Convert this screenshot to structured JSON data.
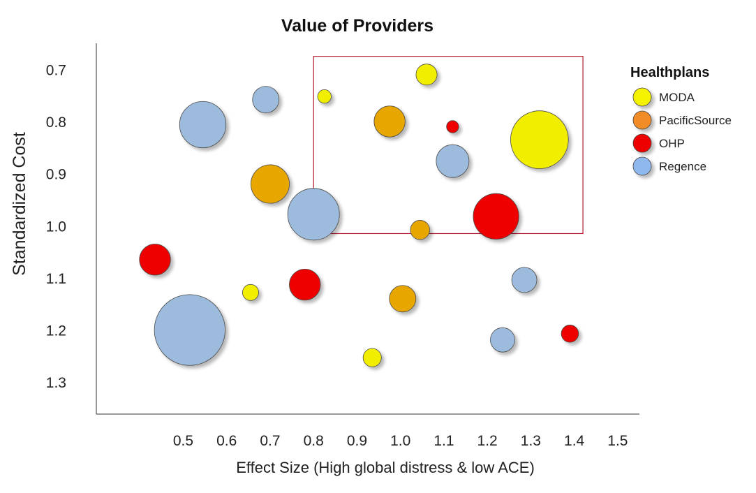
{
  "chart_data": {
    "type": "scatter",
    "subtype": "bubble",
    "title": "Value of Providers",
    "xlabel": "Effect Size (High global distress & low ACE)",
    "ylabel": "Standardized Cost",
    "xlim": [
      0.3,
      1.55
    ],
    "ylim": [
      0.65,
      1.36
    ],
    "y_inverted": true,
    "x_ticks": [
      0.5,
      0.6,
      0.7,
      0.8,
      0.9,
      1.0,
      1.1,
      1.2,
      1.3,
      1.4,
      1.5
    ],
    "x_tick_labels": [
      "0.5",
      "0.6",
      "0.7",
      "0.8",
      "0.9",
      "1.0",
      "1.1",
      "1.2",
      "1.3",
      "1.4",
      "1.5"
    ],
    "y_ticks": [
      0.7,
      0.8,
      0.9,
      1.0,
      1.1,
      1.2,
      1.3
    ],
    "y_tick_labels": [
      "0.7",
      "0.8",
      "0.9",
      "1.0",
      "1.1",
      "1.2",
      "1.3"
    ],
    "highlight_region": {
      "x_range": [
        0.8,
        1.42
      ],
      "y_range": [
        0.675,
        1.015
      ],
      "color": "#b2182b"
    },
    "legend": {
      "title": "Healthplans",
      "position": "top-right",
      "entries": [
        {
          "label": "MODA",
          "color": "#f5f200"
        },
        {
          "label": "PacificSource",
          "color": "#f28c28"
        },
        {
          "label": "OHP",
          "color": "#ee0000"
        },
        {
          "label": "Regence",
          "color": "#8fb8ee"
        }
      ]
    },
    "series": [
      {
        "name": "MODA",
        "color": "#f2ee00",
        "points": [
          {
            "x": 1.06,
            "y": 0.71,
            "size": 1.2
          },
          {
            "x": 0.825,
            "y": 0.752,
            "size": 0.5
          },
          {
            "x": 1.32,
            "y": 0.835,
            "size": 9.0
          },
          {
            "x": 0.655,
            "y": 1.128,
            "size": 0.7
          },
          {
            "x": 0.935,
            "y": 1.253,
            "size": 0.9
          }
        ]
      },
      {
        "name": "PacificSource",
        "color": "#e8a600",
        "points": [
          {
            "x": 0.975,
            "y": 0.8,
            "size": 2.6
          },
          {
            "x": 0.7,
            "y": 0.92,
            "size": 4.0
          },
          {
            "x": 1.045,
            "y": 1.008,
            "size": 1.0
          },
          {
            "x": 1.005,
            "y": 1.14,
            "size": 1.9
          }
        ]
      },
      {
        "name": "OHP",
        "color": "#ee0000",
        "points": [
          {
            "x": 1.12,
            "y": 0.81,
            "size": 0.4
          },
          {
            "x": 1.22,
            "y": 0.982,
            "size": 5.6
          },
          {
            "x": 0.435,
            "y": 1.065,
            "size": 2.6
          },
          {
            "x": 0.78,
            "y": 1.113,
            "size": 2.6
          },
          {
            "x": 1.39,
            "y": 1.207,
            "size": 0.8
          }
        ]
      },
      {
        "name": "Regence",
        "color": "#9dbbdc",
        "points": [
          {
            "x": 0.69,
            "y": 0.758,
            "size": 1.9
          },
          {
            "x": 0.545,
            "y": 0.806,
            "size": 5.8
          },
          {
            "x": 1.12,
            "y": 0.876,
            "size": 2.9
          },
          {
            "x": 0.8,
            "y": 0.978,
            "size": 7.2
          },
          {
            "x": 1.285,
            "y": 1.104,
            "size": 1.7
          },
          {
            "x": 1.235,
            "y": 1.219,
            "size": 1.6
          },
          {
            "x": 0.515,
            "y": 1.2,
            "size": 13.5
          }
        ]
      }
    ]
  }
}
